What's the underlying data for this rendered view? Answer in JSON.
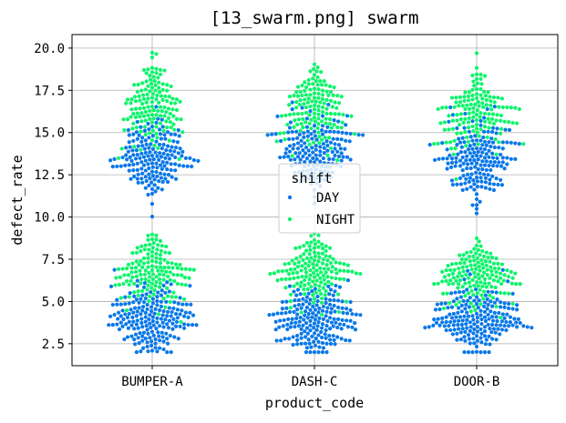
{
  "chart_data": {
    "type": "scatter",
    "subtype": "swarm",
    "title": "[13_swarm.png] swarm",
    "xlabel": "product_code",
    "ylabel": "defect_rate",
    "categories": [
      "BUMPER-A",
      "DASH-C",
      "DOOR-B"
    ],
    "yticks": [
      "2.5",
      "5.0",
      "7.5",
      "10.0",
      "12.5",
      "15.0",
      "17.5",
      "20.0"
    ],
    "ylim": [
      1.2,
      20.8
    ],
    "grid": true,
    "legend": {
      "title": "shift",
      "placement": "center",
      "entries": [
        "DAY",
        "NIGHT"
      ]
    },
    "series": [
      {
        "name": "DAY",
        "color": "#0a78e8",
        "clusters": [
          {
            "category": "BUMPER-A",
            "mean": 3.9,
            "sd": 1.0,
            "n": 190
          },
          {
            "category": "BUMPER-A",
            "mean": 13.6,
            "sd": 1.1,
            "n": 170
          },
          {
            "category": "DASH-C",
            "mean": 3.9,
            "sd": 1.0,
            "n": 190
          },
          {
            "category": "DASH-C",
            "mean": 13.8,
            "sd": 1.1,
            "n": 165
          },
          {
            "category": "DOOR-B",
            "mean": 3.9,
            "sd": 1.0,
            "n": 190
          },
          {
            "category": "DOOR-B",
            "mean": 13.4,
            "sd": 1.2,
            "n": 175
          }
        ]
      },
      {
        "name": "NIGHT",
        "color": "#0ef56b",
        "clusters": [
          {
            "category": "BUMPER-A",
            "mean": 6.8,
            "sd": 1.0,
            "n": 145
          },
          {
            "category": "BUMPER-A",
            "mean": 16.3,
            "sd": 1.2,
            "n": 140
          },
          {
            "category": "DASH-C",
            "mean": 6.8,
            "sd": 1.0,
            "n": 150
          },
          {
            "category": "DASH-C",
            "mean": 16.5,
            "sd": 1.2,
            "n": 140
          },
          {
            "category": "DOOR-B",
            "mean": 6.6,
            "sd": 1.0,
            "n": 150
          },
          {
            "category": "DOOR-B",
            "mean": 16.3,
            "sd": 1.2,
            "n": 140
          }
        ]
      }
    ]
  }
}
